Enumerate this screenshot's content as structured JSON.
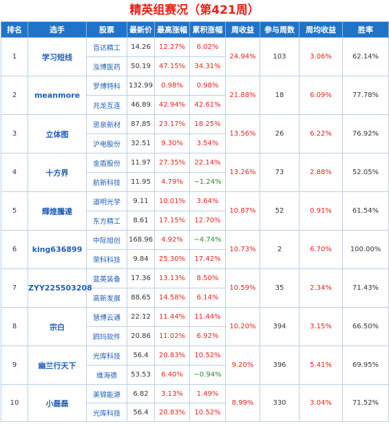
{
  "title": "精英组赛况（第421周）",
  "headers": [
    "排名",
    "选手",
    "股票",
    "最新价",
    "最高涨幅",
    "累积涨幅",
    "周收益",
    "参与周数",
    "周均收益",
    "胜率"
  ],
  "players": [
    {
      "rank": "1",
      "name": "学习短线",
      "week": "24.94%",
      "weeks": "103",
      "avg": "3.06%",
      "winrate": "62.14%",
      "stocks": [
        {
          "name": "百达精工",
          "price": "14.26",
          "high": "12.27%",
          "cum": "6.02%"
        },
        {
          "name": "泓博医药",
          "price": "50.19",
          "high": "47.15%",
          "cum": "34.31%"
        }
      ]
    },
    {
      "rank": "2",
      "name": "meanmore",
      "week": "21.88%",
      "weeks": "18",
      "avg": "6.09%",
      "winrate": "77.78%",
      "stocks": [
        {
          "name": "罗博特科",
          "price": "132.99",
          "high": "0.98%",
          "cum": "0.98%"
        },
        {
          "name": "兆龙互连",
          "price": "46.89",
          "high": "42.94%",
          "cum": "42.61%"
        }
      ]
    },
    {
      "rank": "3",
      "name": "立体图",
      "week": "13.56%",
      "weeks": "26",
      "avg": "6.22%",
      "winrate": "76.92%",
      "stocks": [
        {
          "name": "思泉新材",
          "price": "87.85",
          "high": "23.17%",
          "cum": "18.25%"
        },
        {
          "name": "沪电股份",
          "price": "32.51",
          "high": "9.30%",
          "cum": "3.54%"
        }
      ]
    },
    {
      "rank": "4",
      "name": "十方界",
      "week": "13.26%",
      "weeks": "73",
      "avg": "2.88%",
      "winrate": "52.05%",
      "stocks": [
        {
          "name": "金盾股份",
          "price": "11.97",
          "high": "27.35%",
          "cum": "22.14%"
        },
        {
          "name": "航新科技",
          "price": "11.95",
          "high": "4.79%",
          "cum": "−1.24%"
        }
      ]
    },
    {
      "rank": "5",
      "name": "輝煌騰達",
      "week": "10.87%",
      "weeks": "52",
      "avg": "0.91%",
      "winrate": "61.54%",
      "stocks": [
        {
          "name": "道明光学",
          "price": "9.11",
          "high": "10.01%",
          "cum": "3.64%"
        },
        {
          "name": "东方精工",
          "price": "8.61",
          "high": "17.15%",
          "cum": "12.70%"
        }
      ]
    },
    {
      "rank": "6",
      "name": "king636899",
      "week": "10.73%",
      "weeks": "2",
      "avg": "6.70%",
      "winrate": "100.00%",
      "stocks": [
        {
          "name": "中际旭创",
          "price": "168.96",
          "high": "4.92%",
          "cum": "−4.74%"
        },
        {
          "name": "荣科科技",
          "price": "9.84",
          "high": "25.30%",
          "cum": "17.42%"
        }
      ]
    },
    {
      "rank": "7",
      "name": "ZYY225503208",
      "week": "10.59%",
      "weeks": "35",
      "avg": "2.34%",
      "winrate": "71.43%",
      "stocks": [
        {
          "name": "蓝英装备",
          "price": "17.36",
          "high": "13.13%",
          "cum": "8.50%"
        },
        {
          "name": "高新发展",
          "price": "88.65",
          "high": "14.58%",
          "cum": "6.14%"
        }
      ]
    },
    {
      "rank": "8",
      "name": "宗白",
      "week": "10.20%",
      "weeks": "394",
      "avg": "3.15%",
      "winrate": "66.50%",
      "stocks": [
        {
          "name": "慧博云通",
          "price": "22.12",
          "high": "11.44%",
          "cum": "11.44%"
        },
        {
          "name": "鸥玛软件",
          "price": "20.86",
          "high": "11.02%",
          "cum": "6.92%"
        }
      ]
    },
    {
      "rank": "9",
      "name": "幽兰行天下",
      "week": "9.20%",
      "weeks": "396",
      "avg": "5.41%",
      "winrate": "69.95%",
      "stocks": [
        {
          "name": "光库科技",
          "price": "56.4",
          "high": "20.83%",
          "cum": "10.52%"
        },
        {
          "name": "维海德",
          "price": "53.53",
          "high": "6.40%",
          "cum": "−0.94%"
        }
      ]
    },
    {
      "rank": "10",
      "name": "小磊磊",
      "week": "8.99%",
      "weeks": "330",
      "avg": "3.04%",
      "winrate": "71.52%",
      "stocks": [
        {
          "name": "美锦能源",
          "price": "6.82",
          "high": "3.13%",
          "cum": "1.49%"
        },
        {
          "name": "光库科技",
          "price": "56.4",
          "high": "20.83%",
          "cum": "10.52%"
        }
      ]
    }
  ],
  "colors": {
    "header_bg": "#1f73c8",
    "title": "#e8221a",
    "up": "#e8221a",
    "down": "#1f8a2e",
    "link": "#1f5fb8"
  }
}
